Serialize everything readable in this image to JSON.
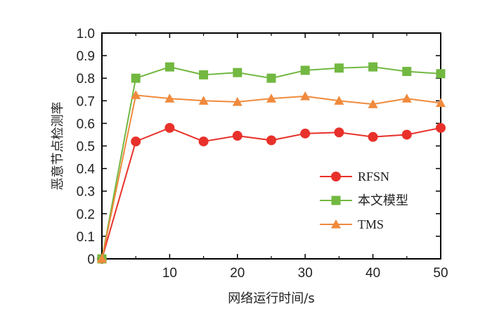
{
  "chart_data": {
    "type": "line",
    "title": "",
    "xlabel": "网络运行时间/s",
    "ylabel": "恶意节点检测率",
    "xlim": [
      0,
      50
    ],
    "ylim": [
      0,
      1.0
    ],
    "xticks": [
      10,
      20,
      30,
      40,
      50
    ],
    "yticks": [
      0,
      0.1,
      0.2,
      0.3,
      0.4,
      0.5,
      0.6,
      0.7,
      0.8,
      0.9,
      1.0
    ],
    "ytick_labels": [
      "0",
      "0.1",
      "0.2",
      "0.3",
      "0.4",
      "0.5",
      "0.6",
      "0.7",
      "0.8",
      "0.9",
      "1.0"
    ],
    "x": [
      0,
      5,
      10,
      15,
      20,
      25,
      30,
      35,
      40,
      45,
      50
    ],
    "grid": false,
    "legend_position": "lower-right",
    "series": [
      {
        "name": "RFSN",
        "color": "#e8312a",
        "marker": "circle",
        "values": [
          0.0,
          0.52,
          0.58,
          0.52,
          0.545,
          0.525,
          0.555,
          0.56,
          0.54,
          0.55,
          0.58
        ]
      },
      {
        "name": "本文模型",
        "color": "#72b841",
        "marker": "square",
        "values": [
          0.0,
          0.8,
          0.85,
          0.815,
          0.825,
          0.8,
          0.835,
          0.845,
          0.85,
          0.83,
          0.82
        ]
      },
      {
        "name": "TMS",
        "color": "#f08a3c",
        "marker": "triangle",
        "values": [
          0.0,
          0.725,
          0.71,
          0.7,
          0.695,
          0.71,
          0.72,
          0.7,
          0.685,
          0.71,
          0.69
        ]
      }
    ]
  }
}
